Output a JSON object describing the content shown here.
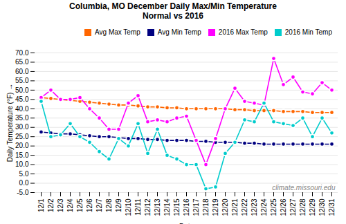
{
  "chart_data": {
    "type": "line",
    "title": "Columbia, MO December Daily Max/Min Temperature\nNormal vs 2016",
    "xlabel": "Date",
    "ylabel": "Daily Temperature (°F)",
    "categories": [
      "12/1",
      "12/2",
      "12/3",
      "12/4",
      "12/5",
      "12/6",
      "12/7",
      "12/8",
      "12/9",
      "12/10",
      "12/11",
      "12/12",
      "12/13",
      "12/14",
      "12/15",
      "12/16",
      "12/17",
      "12/18",
      "12/19",
      "12/20",
      "12/21",
      "12/22",
      "12/23",
      "12/24",
      "12/25",
      "12/26",
      "12/27",
      "12/28",
      "12/29",
      "12/30",
      "12/31"
    ],
    "series": [
      {
        "name": "Avg Max Temp",
        "color": "#ff6600",
        "values": [
          46,
          45.5,
          45,
          44.5,
          44,
          43.5,
          43,
          42.5,
          42,
          42,
          41.5,
          41,
          41,
          40.5,
          40.5,
          40,
          40,
          40,
          40,
          40,
          39.5,
          39.5,
          39,
          39,
          39,
          38.5,
          38.5,
          38.5,
          38,
          38,
          38
        ]
      },
      {
        "name": "Avg Min Temp",
        "color": "#000080",
        "values": [
          27.5,
          27,
          26.5,
          26.5,
          26,
          25.5,
          25,
          25,
          24.5,
          24,
          24,
          23.5,
          23.5,
          23,
          23,
          23,
          22.5,
          22.5,
          22,
          22,
          22,
          21.5,
          21.5,
          21,
          21,
          21,
          21,
          21,
          21,
          21,
          21
        ]
      },
      {
        "name": "2016 Max Temp",
        "color": "#ff00ff",
        "values": [
          46,
          50,
          45,
          45,
          46,
          40,
          35,
          29,
          29,
          43,
          47,
          33,
          34,
          33,
          35,
          36,
          23,
          10,
          24,
          40,
          51,
          44,
          43,
          42,
          67,
          53,
          57,
          49,
          48,
          54,
          50
        ]
      },
      {
        "name": "2016 Min Temp",
        "color": "#00cccc",
        "values": [
          44,
          25,
          26,
          32,
          25,
          22,
          17,
          13,
          24,
          20,
          32,
          16,
          29,
          15,
          13,
          10,
          10,
          -3,
          -2,
          16,
          22,
          34,
          33,
          43,
          33,
          32,
          31,
          35,
          25,
          35,
          27
        ]
      }
    ],
    "ylim": [
      -5.0,
      70.0
    ],
    "yticks": [
      {
        "value": -5,
        "label": "-5.0"
      },
      {
        "value": 0,
        "label": "0.0"
      },
      {
        "value": 5,
        "label": "5.0"
      },
      {
        "value": 10,
        "label": "10.0"
      },
      {
        "value": 15,
        "label": "15.0"
      },
      {
        "value": 20,
        "label": "20.0"
      },
      {
        "value": 25,
        "label": "25.0"
      },
      {
        "value": 30,
        "label": "30.0"
      },
      {
        "value": 35,
        "label": "35.0"
      },
      {
        "value": 40,
        "label": "40.0"
      },
      {
        "value": 45,
        "label": "45.0"
      },
      {
        "value": 50,
        "label": "50.0"
      },
      {
        "value": 55,
        "label": "55.0"
      },
      {
        "value": 60,
        "label": "60.0"
      },
      {
        "value": 65,
        "label": "65.0"
      },
      {
        "value": 70,
        "label": "70.0"
      }
    ],
    "grid": true,
    "legend": "upper right",
    "marker": "circle",
    "annotations": [
      "climate.missouri.edu"
    ]
  }
}
